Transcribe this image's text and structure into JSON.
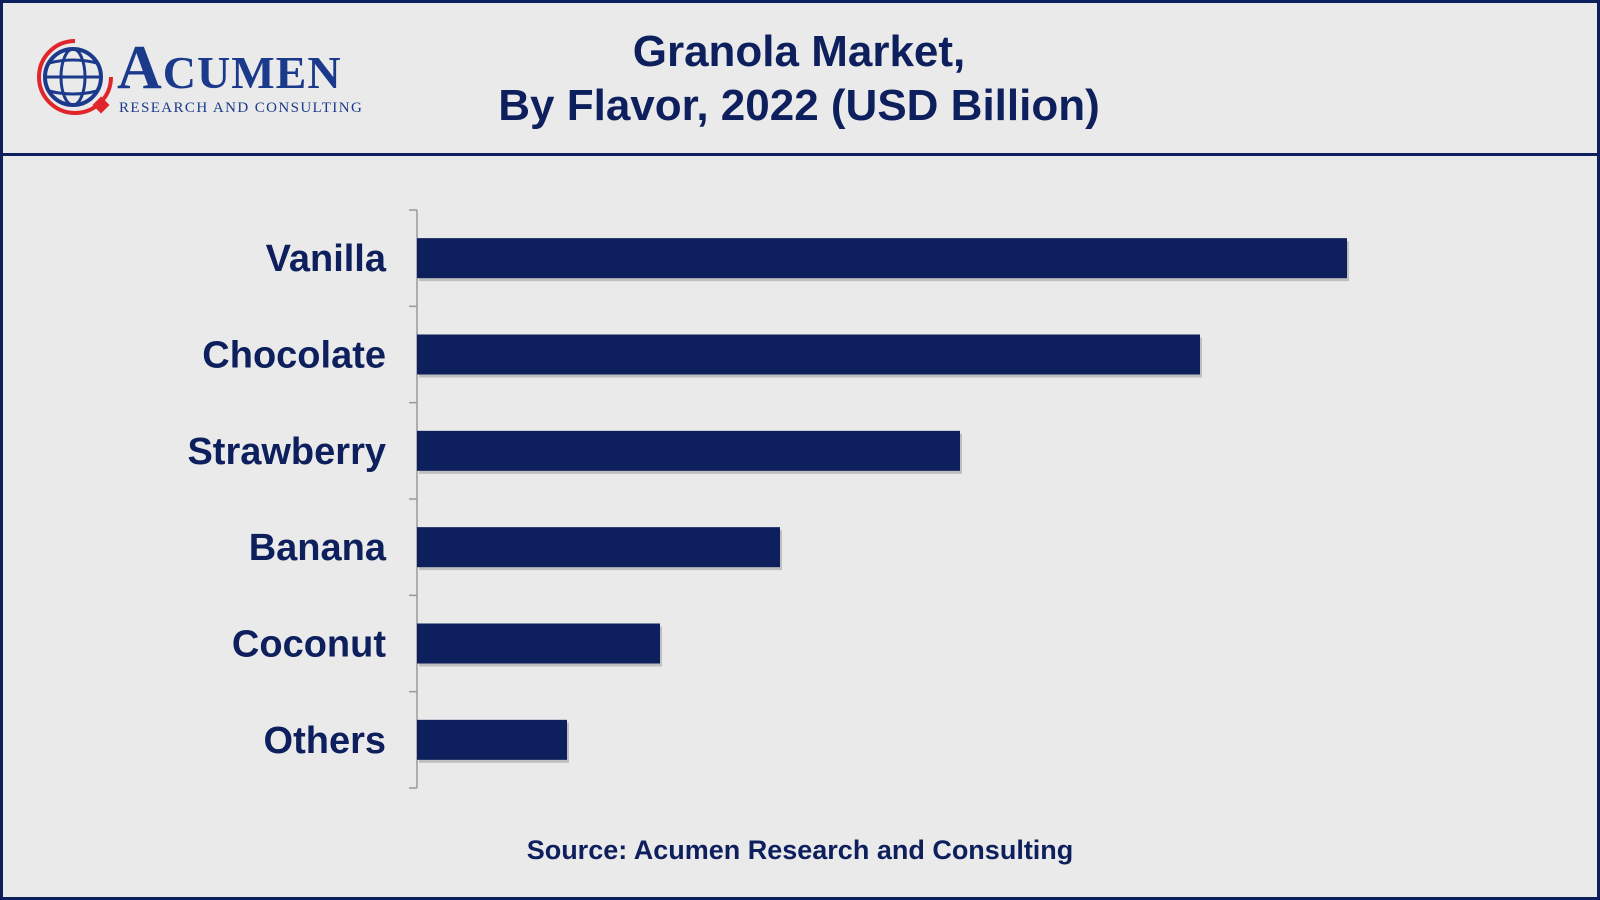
{
  "header": {
    "title_line1": "Granola Market,",
    "title_line2": "By Flavor, 2022 (USD Billion)",
    "logo_word_first": "A",
    "logo_word_rest": "CUMEN",
    "logo_subtitle": "RESEARCH AND CONSULTING",
    "logo_icon": "globe-icon"
  },
  "footer": {
    "source": "Source: Acumen Research and Consulting"
  },
  "colors": {
    "bar": "#0d1f5c",
    "text": "#0d1f5c",
    "logo_accent": "#e0252b",
    "logo_blue": "#1b3a8c",
    "background": "#eaeaea"
  },
  "chart_data": {
    "type": "bar",
    "orientation": "horizontal",
    "categories": [
      "Vanilla",
      "Chocolate",
      "Strawberry",
      "Banana",
      "Coconut",
      "Others"
    ],
    "values": [
      3.1,
      2.61,
      1.81,
      1.21,
      0.81,
      0.5
    ],
    "xlim": [
      0,
      3.4
    ],
    "grid": false,
    "legend": "none"
  }
}
